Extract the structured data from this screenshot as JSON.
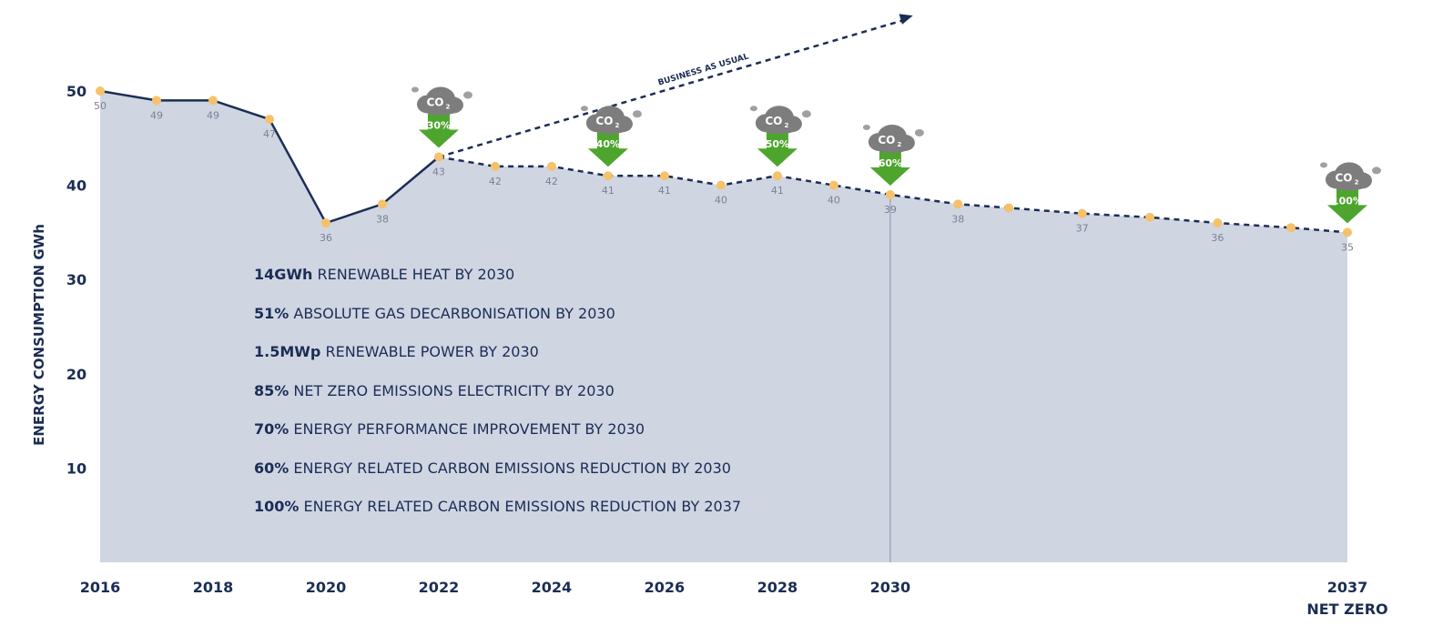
{
  "chart_data": {
    "type": "line",
    "ylabel": "ENERGY CONSUMPTION GWh",
    "yticks": [
      10,
      20,
      30,
      40,
      50
    ],
    "ylim": [
      0,
      50
    ],
    "xlim": [
      2016,
      2038.1
    ],
    "xticks": [
      {
        "x": 2016,
        "label": "2016"
      },
      {
        "x": 2018,
        "label": "2018"
      },
      {
        "x": 2020,
        "label": "2020"
      },
      {
        "x": 2022,
        "label": "2022"
      },
      {
        "x": 2024,
        "label": "2024"
      },
      {
        "x": 2026,
        "label": "2026"
      },
      {
        "x": 2028,
        "label": "2028"
      },
      {
        "x": 2030,
        "label": "2030"
      },
      {
        "x": 2038.1,
        "label": "2037",
        "sublabel": "NET ZERO"
      }
    ],
    "series": [
      {
        "style": "solid",
        "x": [
          2016,
          2017,
          2018,
          2019,
          2020,
          2021,
          2022
        ],
        "y": [
          50,
          49,
          49,
          47,
          36,
          38,
          43
        ],
        "labels": [
          "50",
          "49",
          "49",
          "47",
          "36",
          "38",
          "43"
        ]
      },
      {
        "style": "dashed",
        "x": [
          2022,
          2023,
          2024,
          2025,
          2026,
          2027,
          2028,
          2029,
          2030,
          2031.2,
          2032.1,
          2033.4,
          2034.6,
          2035.8,
          2037.1,
          2038.1
        ],
        "y": [
          43,
          42,
          42,
          41,
          41,
          40,
          41,
          40,
          39,
          38,
          37.6,
          37,
          36.6,
          36,
          35.5,
          35
        ],
        "labels": [
          "43",
          "42",
          "42",
          "41",
          "41",
          "40",
          "41",
          "40",
          "39",
          "38",
          "",
          "37",
          "",
          "36",
          "",
          "35"
        ]
      }
    ],
    "projection_arrow": {
      "label": "BUSINESS AS USUAL",
      "from": [
        2022,
        43
      ],
      "to": [
        2030.4,
        58
      ]
    },
    "milestones": [
      {
        "x": 2022,
        "co2": "CO",
        "co2_sub": "2",
        "reduction": "30%"
      },
      {
        "x": 2025,
        "co2": "CO",
        "co2_sub": "2",
        "reduction": "40%"
      },
      {
        "x": 2028,
        "co2": "CO",
        "co2_sub": "2",
        "reduction": "50%"
      },
      {
        "x": 2030,
        "co2": "CO",
        "co2_sub": "2",
        "reduction": "60%"
      },
      {
        "x": 2038.1,
        "co2": "CO",
        "co2_sub": "2",
        "reduction": "100%"
      }
    ],
    "reference_line_x": 2030,
    "colors": {
      "fill": "#d0d5e2",
      "line": "#1b2d55",
      "marker": "#f5c26b",
      "arrow": "#4ea52e",
      "cloud": "#7d7d7d"
    }
  },
  "targets": [
    {
      "bold": "14GWh",
      "text": " RENEWABLE HEAT BY 2030"
    },
    {
      "bold": "51%",
      "text": " ABSOLUTE GAS DECARBONISATION BY 2030"
    },
    {
      "bold": "1.5MWp",
      "text": " RENEWABLE POWER BY 2030"
    },
    {
      "bold": "85%",
      "text": " NET ZERO EMISSIONS ELECTRICITY BY 2030"
    },
    {
      "bold": "70%",
      "text": " ENERGY PERFORMANCE IMPROVEMENT BY 2030"
    },
    {
      "bold": "60%",
      "text": " ENERGY RELATED CARBON EMISSIONS REDUCTION BY 2030"
    },
    {
      "bold": "100%",
      "text": " ENERGY RELATED CARBON EMISSIONS REDUCTION BY 2037"
    }
  ]
}
